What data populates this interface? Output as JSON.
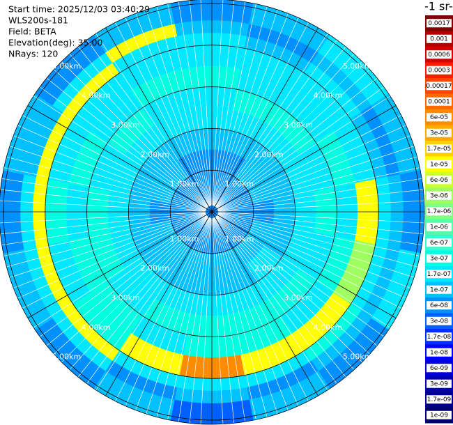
{
  "chart_data": {
    "type": "ppi",
    "title": "-1 sr-",
    "info": [
      "Start time: 2025/12/03 03:40:29",
      "WLS200s-181",
      "Field: BETA",
      "Elevation(deg): 35.00",
      "NRays: 120"
    ],
    "rlim": [
      0,
      5.1
    ],
    "range_rings": [
      {
        "value": 1,
        "label": "1.00km"
      },
      {
        "value": 2,
        "label": "2.00km"
      },
      {
        "value": 3,
        "label": "3.00km"
      },
      {
        "value": 4,
        "label": "4.00km"
      },
      {
        "value": 5,
        "label": "5.00km"
      }
    ],
    "azimuths": [
      0,
      22.5,
      45,
      67.5,
      90,
      112.5,
      135,
      157.5,
      180,
      202.5,
      225,
      247.5,
      270,
      292.5,
      315,
      337.5
    ],
    "range_bins": [
      0,
      0.5,
      1,
      1.5,
      2,
      2.5,
      3,
      3.5,
      4,
      4.3,
      4.6,
      5.1
    ],
    "values": [
      [
        6e-08,
        6e-08,
        6e-08,
        1e-07,
        1.7e-07,
        1.7e-07,
        3e-07,
        1.7e-07,
        1.7e-07,
        1e-07,
        6e-08
      ],
      [
        6e-08,
        6e-08,
        6e-08,
        1e-07,
        1.7e-07,
        3e-07,
        1.7e-07,
        1.7e-07,
        1e-07,
        6e-08,
        1e-07
      ],
      [
        6e-08,
        6e-08,
        1e-07,
        1e-07,
        1.7e-07,
        3e-07,
        1.7e-07,
        1.7e-07,
        1.7e-07,
        1e-07,
        1.7e-07
      ],
      [
        6e-08,
        6e-08,
        1e-07,
        1e-07,
        1.7e-07,
        1.7e-07,
        3e-07,
        1.7e-07,
        1e-07,
        6e-08,
        1e-07
      ],
      [
        6e-08,
        6e-08,
        6e-08,
        1e-07,
        1.7e-07,
        3e-07,
        1.7e-07,
        1e-05,
        1.7e-07,
        1e-07,
        6e-08
      ],
      [
        6e-08,
        6e-08,
        1e-07,
        1e-07,
        1.7e-07,
        1.7e-07,
        3e-07,
        3e-06,
        1.7e-07,
        1e-07,
        1.7e-07
      ],
      [
        6e-08,
        6e-08,
        1e-07,
        1.7e-07,
        1.7e-07,
        3e-07,
        1.7e-07,
        1e-05,
        3e-07,
        1e-07,
        6e-08
      ],
      [
        6e-08,
        6e-08,
        1e-07,
        1e-07,
        1.7e-07,
        3e-07,
        3e-07,
        1e-05,
        1.7e-07,
        6e-08,
        1e-07
      ],
      [
        6e-08,
        6e-08,
        1e-07,
        1e-07,
        1.7e-07,
        3e-07,
        3e-07,
        6e-05,
        1.7e-07,
        1e-07,
        3e-08
      ],
      [
        6e-08,
        6e-08,
        1e-07,
        1e-07,
        1.7e-07,
        3e-07,
        1.7e-07,
        1e-05,
        1.7e-07,
        6e-08,
        1e-07
      ],
      [
        6e-08,
        6e-08,
        1e-07,
        1e-07,
        1.7e-07,
        1.7e-07,
        3e-07,
        3e-07,
        1e-05,
        1.7e-07,
        6e-08
      ],
      [
        6e-08,
        6e-08,
        1e-07,
        1e-07,
        1.7e-07,
        3e-07,
        3e-07,
        1.7e-07,
        1e-05,
        1.7e-07,
        1e-07
      ],
      [
        6e-08,
        6e-08,
        6e-08,
        1e-07,
        1.7e-07,
        3e-07,
        1.7e-07,
        3e-07,
        1e-05,
        1.7e-07,
        6e-08
      ],
      [
        6e-08,
        6e-08,
        1e-07,
        1e-07,
        1.7e-07,
        1.7e-07,
        3e-07,
        1.7e-07,
        1e-05,
        1e-07,
        1e-07
      ],
      [
        6e-08,
        6e-08,
        1e-07,
        1e-07,
        1.7e-07,
        3e-07,
        1.7e-07,
        1.7e-07,
        1e-05,
        1.7e-07,
        6e-08
      ],
      [
        6e-08,
        6e-08,
        6e-08,
        1e-07,
        1.7e-07,
        1.7e-07,
        3e-07,
        1.7e-07,
        1.7e-07,
        1e-05,
        1e-07
      ]
    ],
    "colorbar_ticks": [
      0.0017,
      0.001,
      {
        "value": 0.0006,
        "label": "0.0006"
      },
      0.0003,
      0.00017,
      0.0001,
      {
        "value": 6e-05,
        "label": "6e-05"
      },
      {
        "value": 3e-05,
        "label": "3e-05"
      },
      {
        "value": 1.7e-05,
        "label": "1.7e-05"
      },
      {
        "value": 1e-05,
        "label": "1e-05"
      },
      {
        "value": 6e-06,
        "label": "6e-06"
      },
      {
        "value": 3e-06,
        "label": "3e-06"
      },
      {
        "value": 1.7e-06,
        "label": "1.7e-06"
      },
      {
        "value": 1e-06,
        "label": "1e-06"
      },
      {
        "value": 6e-07,
        "label": "6e-07"
      },
      {
        "value": 3e-07,
        "label": "3e-07"
      },
      {
        "value": 1.7e-07,
        "label": "1.7e-07"
      },
      {
        "value": 1e-07,
        "label": "1e-07"
      },
      {
        "value": 6e-08,
        "label": "6e-08"
      },
      {
        "value": 3e-08,
        "label": "3e-08"
      },
      {
        "value": 1.7e-08,
        "label": "1.7e-08"
      },
      {
        "value": 1e-08,
        "label": "1e-08"
      },
      {
        "value": 6e-09,
        "label": "6e-09"
      },
      {
        "value": 3e-09,
        "label": "3e-09"
      },
      {
        "value": 1.7e-09,
        "label": "1.7e-09"
      },
      {
        "value": 1e-09,
        "label": "1e-09"
      }
    ],
    "colors": [
      "#800000",
      "#b00000",
      "#d40000",
      "#ff1a00",
      "#ff4500",
      "#ff6a00",
      "#ff8c00",
      "#ffaa00",
      "#ffd000",
      "#ffff00",
      "#ccff33",
      "#a0ff60",
      "#80ff80",
      "#50ffa8",
      "#30ffd0",
      "#00ffe0",
      "#00e8ff",
      "#00c0ff",
      "#0090ff",
      "#0060ff",
      "#0030ff",
      "#0000ff",
      "#0000d8",
      "#0000b0",
      "#000090",
      "#000070"
    ]
  }
}
